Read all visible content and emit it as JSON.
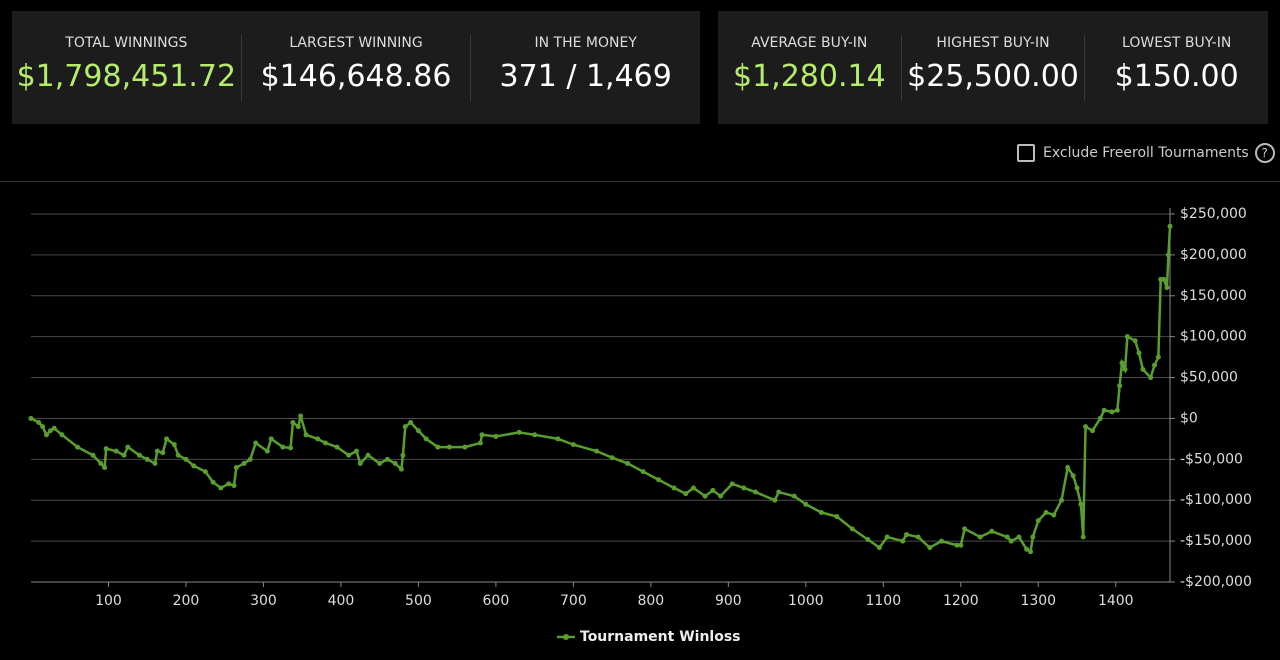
{
  "stats_left": [
    {
      "label": "TOTAL WINNINGS",
      "value": "$1,798,451.72"
    },
    {
      "label": "LARGEST WINNING",
      "value": "$146,648.86"
    },
    {
      "label": "IN THE MONEY",
      "value": "371 / 1,469"
    }
  ],
  "stats_right": [
    {
      "label": "AVERAGE BUY-IN",
      "value": "$1,280.14"
    },
    {
      "label": "HIGHEST BUY-IN",
      "value": "$25,500.00"
    },
    {
      "label": "LOWEST BUY-IN",
      "value": "$150.00"
    }
  ],
  "filter": {
    "label": "Exclude Freeroll Tournaments",
    "help": "?"
  },
  "chart_data": {
    "type": "line",
    "x": [
      0,
      10,
      15,
      20,
      25,
      30,
      40,
      60,
      80,
      90,
      95,
      97,
      110,
      120,
      125,
      140,
      150,
      160,
      163,
      170,
      175,
      185,
      190,
      200,
      210,
      225,
      235,
      245,
      255,
      262,
      265,
      275,
      283,
      290,
      305,
      310,
      325,
      335,
      338,
      345,
      348,
      355,
      370,
      380,
      395,
      410,
      420,
      425,
      435,
      450,
      460,
      470,
      478,
      480,
      483,
      490,
      500,
      510,
      525,
      540,
      560,
      580,
      582,
      600,
      630,
      650,
      680,
      700,
      730,
      750,
      770,
      790,
      810,
      830,
      845,
      855,
      870,
      880,
      890,
      905,
      920,
      935,
      960,
      965,
      985,
      1000,
      1020,
      1040,
      1060,
      1080,
      1095,
      1105,
      1125,
      1130,
      1145,
      1160,
      1175,
      1195,
      1200,
      1205,
      1225,
      1240,
      1260,
      1265,
      1275,
      1285,
      1290,
      1293,
      1300,
      1310,
      1320,
      1330,
      1338,
      1345,
      1350,
      1355,
      1358,
      1361,
      1370,
      1380,
      1385,
      1395,
      1402,
      1405,
      1408,
      1412,
      1415,
      1425,
      1430,
      1435,
      1445,
      1450,
      1455,
      1458,
      1462,
      1466,
      1468,
      1470
    ],
    "series": [
      {
        "name": "Tournament Winloss",
        "color": "#5a9e2f",
        "values": [
          0,
          -5000,
          -10000,
          -20000,
          -15000,
          -12000,
          -20000,
          -35000,
          -45000,
          -55000,
          -60000,
          -37000,
          -40000,
          -45000,
          -35000,
          -45000,
          -50000,
          -55000,
          -40000,
          -42000,
          -25000,
          -32000,
          -45000,
          -50000,
          -58000,
          -65000,
          -78000,
          -85000,
          -80000,
          -82000,
          -60000,
          -55000,
          -50000,
          -30000,
          -40000,
          -25000,
          -35000,
          -36000,
          -5000,
          -10000,
          3000,
          -20000,
          -25000,
          -30000,
          -35000,
          -45000,
          -40000,
          -55000,
          -45000,
          -55000,
          -50000,
          -55000,
          -62000,
          -45000,
          -10000,
          -5000,
          -15000,
          -25000,
          -35000,
          -35000,
          -35000,
          -30000,
          -20000,
          -22000,
          -17000,
          -20000,
          -25000,
          -32000,
          -40000,
          -48000,
          -55000,
          -65000,
          -75000,
          -85000,
          -92000,
          -85000,
          -95000,
          -88000,
          -95000,
          -80000,
          -85000,
          -90000,
          -100000,
          -90000,
          -95000,
          -105000,
          -115000,
          -120000,
          -135000,
          -148000,
          -158000,
          -145000,
          -150000,
          -142000,
          -145000,
          -158000,
          -150000,
          -155000,
          -155000,
          -135000,
          -145000,
          -138000,
          -145000,
          -150000,
          -145000,
          -160000,
          -163000,
          -145000,
          -125000,
          -115000,
          -118000,
          -100000,
          -60000,
          -70000,
          -85000,
          -105000,
          -145000,
          -10000,
          -15000,
          0,
          10000,
          8000,
          10000,
          40000,
          68000,
          60000,
          100000,
          95000,
          80000,
          60000,
          50000,
          65000,
          75000,
          170000,
          170000,
          160000,
          200000,
          235000
        ]
      }
    ],
    "xlim": [
      0,
      1470
    ],
    "xticks": [
      100,
      200,
      300,
      400,
      500,
      600,
      700,
      800,
      900,
      1000,
      1100,
      1200,
      1300,
      1400
    ],
    "ylim": [
      -200000,
      250000
    ],
    "yticks": [
      {
        "value": -200000,
        "label": "-$200,000"
      },
      {
        "value": -150000,
        "label": "-$150,000"
      },
      {
        "value": -100000,
        "label": "-$100,000"
      },
      {
        "value": -50000,
        "label": "-$50,000"
      },
      {
        "value": 0,
        "label": "$0"
      },
      {
        "value": 50000,
        "label": "$50,000"
      },
      {
        "value": 100000,
        "label": "$100,000"
      },
      {
        "value": 150000,
        "label": "$150,000"
      },
      {
        "value": 200000,
        "label": "$200,000"
      },
      {
        "value": 250000,
        "label": "$250,000"
      }
    ],
    "grid": true
  }
}
